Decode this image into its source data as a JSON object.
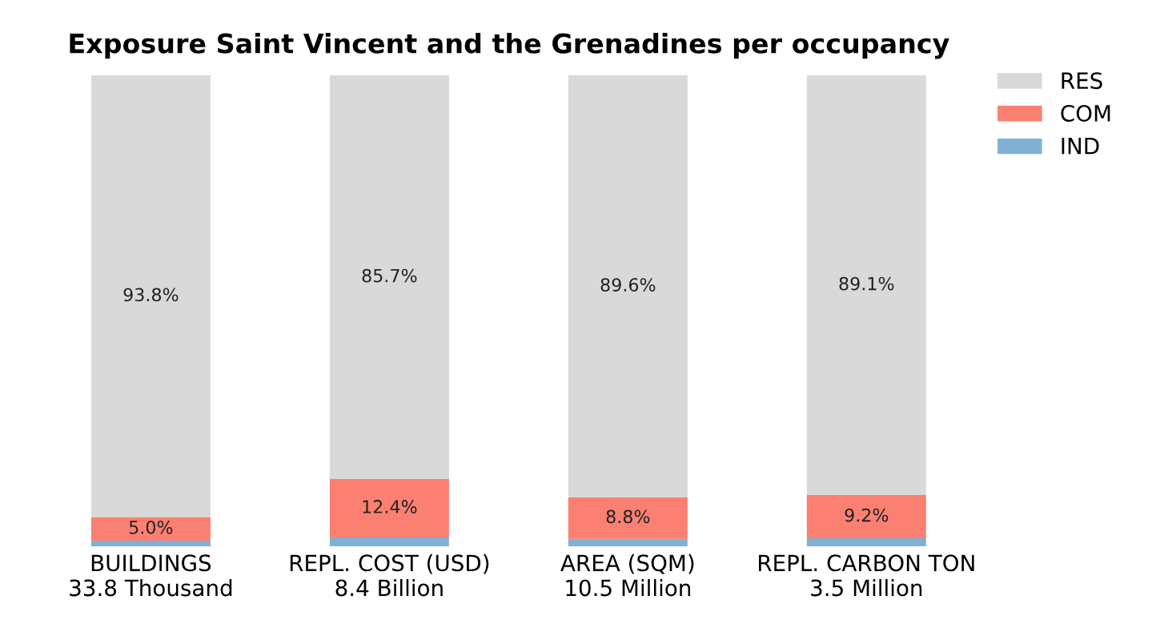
{
  "chart_data": {
    "type": "bar",
    "stacked": true,
    "title": "Exposure Saint Vincent and the Grenadines per occupancy",
    "categories": [
      "BUILDINGS\n33.8 Thousand",
      "REPL. COST (USD)\n8.4 Billion",
      "AREA (SQM)\n10.5 Million",
      "REPL. CARBON TON\n3.5 Million"
    ],
    "series": [
      {
        "name": "IND",
        "color": "#80b1d3",
        "values": [
          1.2,
          1.9,
          1.6,
          1.7
        ],
        "value_labels": [
          null,
          null,
          null,
          null
        ]
      },
      {
        "name": "COM",
        "color": "#fb8072",
        "values": [
          5.0,
          12.4,
          8.8,
          9.2
        ],
        "value_labels": [
          "5.0%",
          "12.4%",
          "8.8%",
          "9.2%"
        ]
      },
      {
        "name": "RES",
        "color": "#d9d9d9",
        "values": [
          93.8,
          85.7,
          89.6,
          89.1
        ],
        "value_labels": [
          "93.8%",
          "85.7%",
          "89.6%",
          "89.1%"
        ]
      }
    ],
    "legend": "top right",
    "grid": false,
    "tick_labels": "x"
  }
}
